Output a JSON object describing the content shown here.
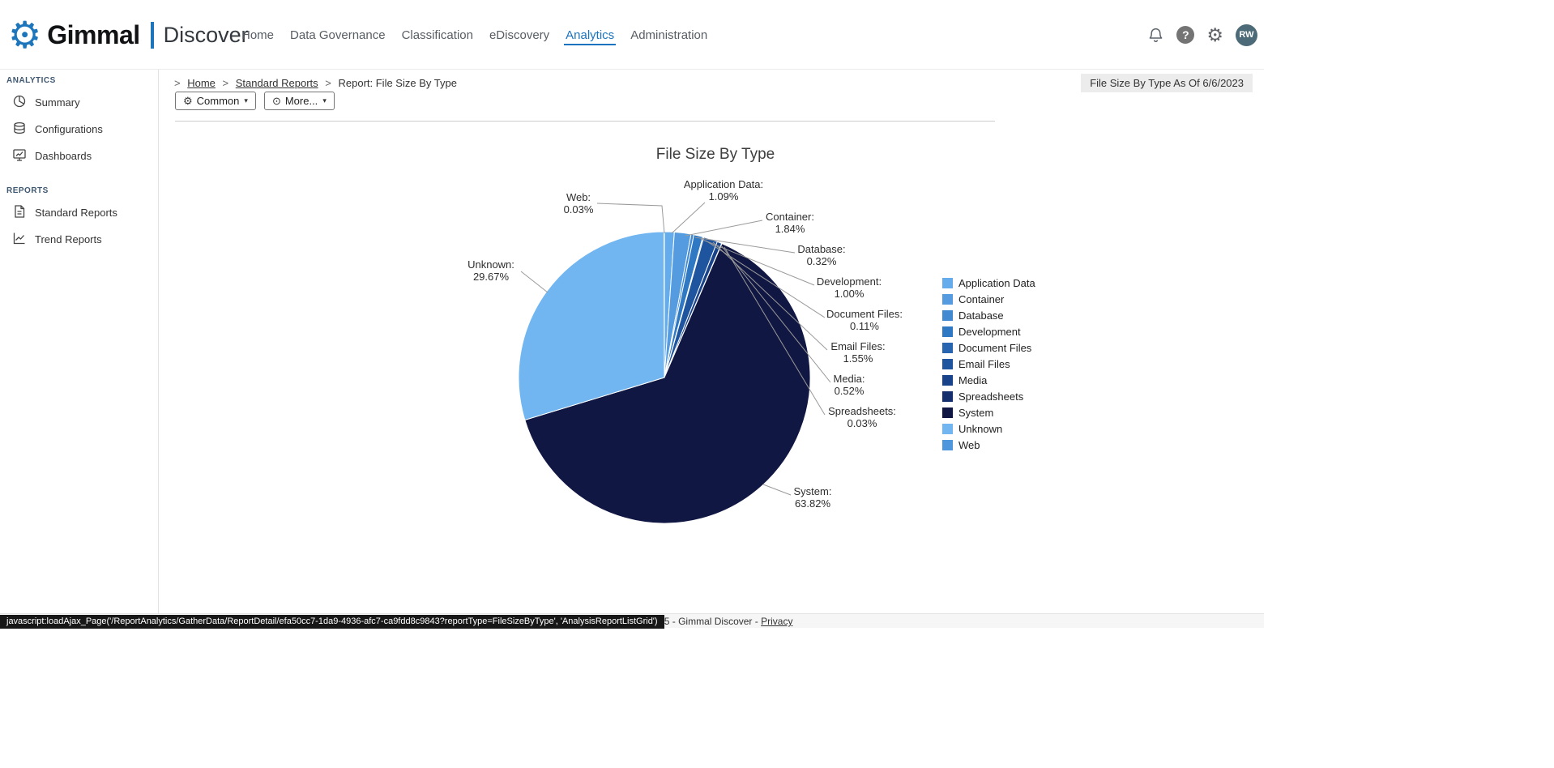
{
  "brand": {
    "name": "Gimmal",
    "product": "Discover"
  },
  "nav": {
    "items": [
      "Home",
      "Data Governance",
      "Classification",
      "eDiscovery",
      "Analytics",
      "Administration"
    ],
    "active": "Analytics"
  },
  "header": {
    "notifications_icon": "bell-icon",
    "help_icon": "question-mark-icon",
    "settings_icon": "gear-icon",
    "avatar_initials": "RW"
  },
  "sidebar": {
    "sections": [
      {
        "label": "ANALYTICS",
        "items": [
          {
            "label": "Summary",
            "icon": "summary-icon"
          },
          {
            "label": "Configurations",
            "icon": "configurations-icon"
          },
          {
            "label": "Dashboards",
            "icon": "dashboards-icon"
          }
        ]
      },
      {
        "label": "REPORTS",
        "items": [
          {
            "label": "Standard Reports",
            "icon": "standard-reports-icon"
          },
          {
            "label": "Trend Reports",
            "icon": "trend-reports-icon"
          }
        ]
      }
    ]
  },
  "breadcrumb": {
    "leading": ">",
    "separator": ">",
    "items": [
      "Home",
      "Standard Reports"
    ],
    "current": "Report: File Size By Type"
  },
  "report_header": {
    "as_of_label": "File Size By Type As Of 6/6/2023"
  },
  "toolbar": {
    "common": {
      "label": "Common",
      "icon": "gear-icon",
      "caret": "▾"
    },
    "more": {
      "label": "More...",
      "icon": "ellipsis-circle-icon",
      "caret": "▾"
    }
  },
  "chart_data": {
    "type": "pie",
    "title": "File Size By Type",
    "legend_position": "right",
    "start_angle": "top",
    "direction": "clockwise",
    "series": [
      {
        "name": "Application Data",
        "value": 1.09,
        "pct_label": "1.09%",
        "color": "#64ACEC"
      },
      {
        "name": "Container",
        "value": 1.84,
        "pct_label": "1.84%",
        "color": "#549BDF"
      },
      {
        "name": "Database",
        "value": 0.32,
        "pct_label": "0.32%",
        "color": "#418AD2"
      },
      {
        "name": "Development",
        "value": 1.0,
        "pct_label": "1.00%",
        "color": "#2F78C3"
      },
      {
        "name": "Document Files",
        "value": 0.11,
        "pct_label": "0.11%",
        "color": "#2765B1"
      },
      {
        "name": "Email Files",
        "value": 1.55,
        "pct_label": "1.55%",
        "color": "#1F549E"
      },
      {
        "name": "Media",
        "value": 0.52,
        "pct_label": "0.52%",
        "color": "#18428A"
      },
      {
        "name": "Spreadsheets",
        "value": 0.03,
        "pct_label": "0.03%",
        "color": "#142E6E"
      },
      {
        "name": "System",
        "value": 63.82,
        "pct_label": "63.82%",
        "color": "#111743"
      },
      {
        "name": "Unknown",
        "value": 29.67,
        "pct_label": "29.67%",
        "color": "#71B6F1"
      },
      {
        "name": "Web",
        "value": 0.03,
        "pct_label": "0.03%",
        "color": "#4E97DC"
      }
    ]
  },
  "footer": {
    "copyright": "© 2025 - Gimmal Discover -",
    "privacy_label": "Privacy"
  },
  "status_bar": {
    "text": "javascript:loadAjax_Page('/ReportAnalytics/GatherData/ReportDetail/efa50cc7-1da9-4936-afc7-ca9fdd8c9843?reportType=FileSizeByType', 'AnalysisReportListGrid')"
  }
}
